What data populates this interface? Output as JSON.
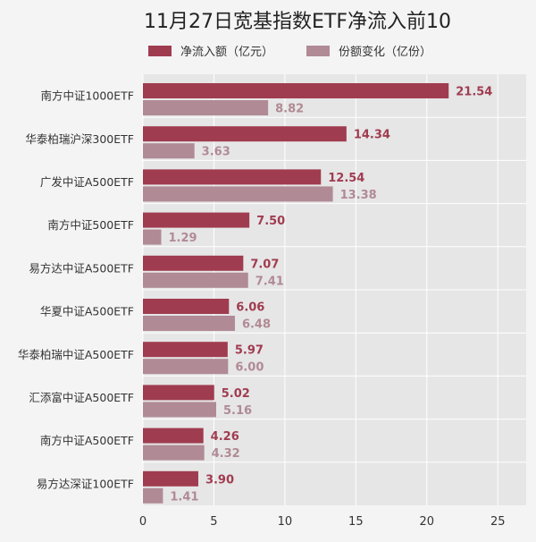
{
  "chart_data": {
    "type": "bar",
    "orientation": "horizontal",
    "title": "11月27日宽基指数ETF净流入前10",
    "categories": [
      "南方中证1000ETF",
      "华泰柏瑞沪深300ETF",
      "广发中证A500ETF",
      "南方中证500ETF",
      "易方达中证A500ETF",
      "华夏中证A500ETF",
      "华泰柏瑞中证A500ETF",
      "汇添富中证A500ETF",
      "南方中证A500ETF",
      "易方达深证100ETF"
    ],
    "series": [
      {
        "name": "净流入额（亿元）",
        "color": "#a03c50",
        "values": [
          21.54,
          14.34,
          12.54,
          7.5,
          7.07,
          6.06,
          5.97,
          5.02,
          4.26,
          3.9
        ],
        "labels": [
          "21.54",
          "14.34",
          "12.54",
          "7.50",
          "7.07",
          "6.06",
          "5.97",
          "5.02",
          "4.26",
          "3.90"
        ]
      },
      {
        "name": "份额变化（亿份）",
        "color": "#b08a95",
        "values": [
          8.82,
          3.63,
          13.38,
          1.29,
          7.41,
          6.48,
          6.0,
          5.16,
          4.32,
          1.41
        ],
        "labels": [
          "8.82",
          "3.63",
          "13.38",
          "1.29",
          "7.41",
          "6.48",
          "6.00",
          "5.16",
          "4.32",
          "1.41"
        ]
      }
    ],
    "xticks": [
      "0",
      "5",
      "10",
      "15",
      "20",
      "25"
    ],
    "xlim": [
      0,
      27
    ],
    "grid": true,
    "legend_position": "top",
    "colors": {
      "background": "#f4f4f4",
      "plot_background": "#e6e6e6",
      "grid": "#ffffff"
    }
  }
}
